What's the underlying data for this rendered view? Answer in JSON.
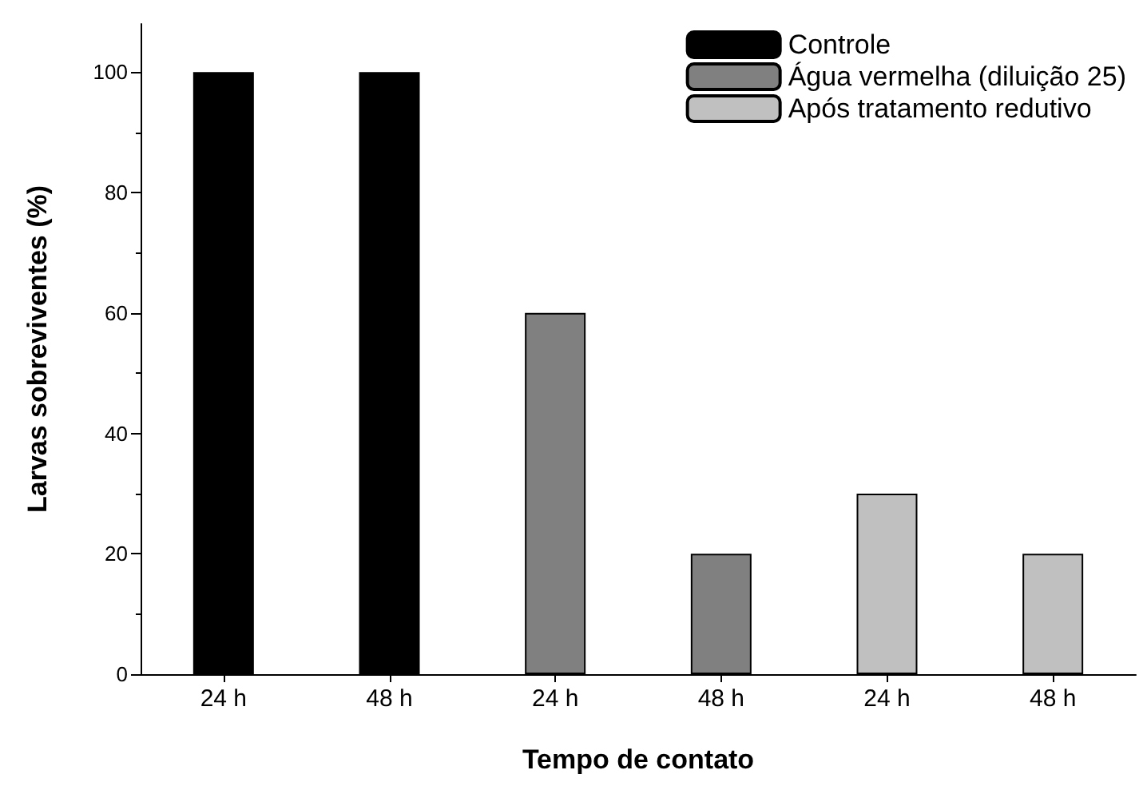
{
  "chart_data": {
    "type": "bar",
    "xlabel": "Tempo de contato",
    "ylabel": "Larvas sobreviventes (%)",
    "categories": [
      "24 h",
      "48 h",
      "24 h",
      "48 h",
      "24 h",
      "48 h"
    ],
    "series": [
      {
        "name": "Controle",
        "color": "#000000",
        "values": [
          100,
          100,
          null,
          null,
          null,
          null
        ]
      },
      {
        "name": "Água vermelha (diluição 25)",
        "color": "#808080",
        "values": [
          null,
          null,
          60,
          20,
          null,
          null
        ]
      },
      {
        "name": "Após tratamento redutivo",
        "color": "#c0c0c0",
        "values": [
          null,
          null,
          null,
          null,
          30,
          20
        ]
      }
    ],
    "ylim": [
      0,
      108
    ],
    "yticks": [
      0,
      20,
      40,
      60,
      80,
      100
    ],
    "grid": false,
    "legend": "top right"
  }
}
